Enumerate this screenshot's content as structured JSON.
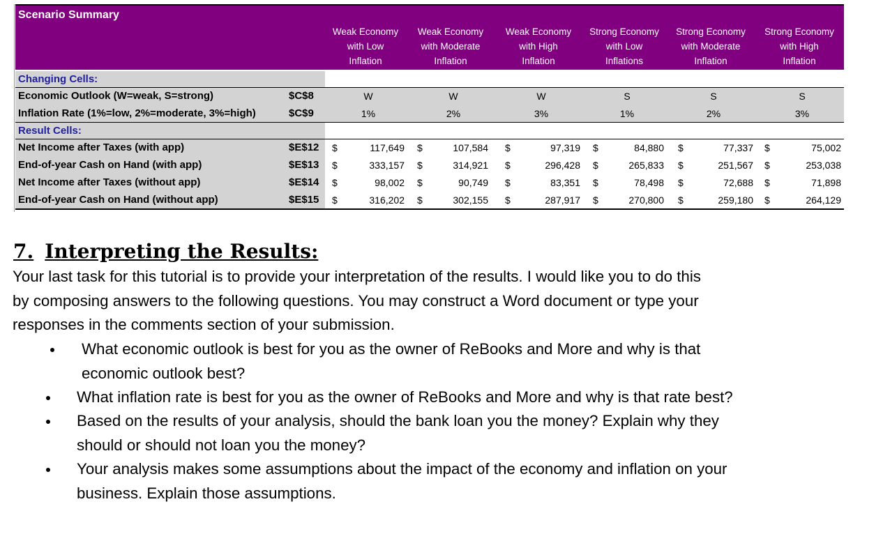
{
  "sheet": {
    "title": "Scenario Summary",
    "scenarios": [
      "Weak Economy with Low Inflation",
      "Weak Economy with Moderate Inflation",
      "Weak Economy with High Inflation",
      "Strong Economy with Low Inflations",
      "Strong Economy with Moderate Inflation",
      "Strong Economy with High Inflation"
    ],
    "scenario_lines": [
      [
        "Weak Economy",
        "with Low",
        "Inflation"
      ],
      [
        "Weak Economy",
        "with Moderate",
        "Inflation"
      ],
      [
        "Weak Economy",
        "with High",
        "Inflation"
      ],
      [
        "Strong Economy",
        "with Low",
        "Inflations"
      ],
      [
        "Strong Economy",
        "with Moderate",
        "Inflation"
      ],
      [
        "Strong Economy",
        "with High",
        "Inflation"
      ]
    ],
    "changing_label": "Changing Cells:",
    "changing_rows": [
      {
        "label": "Economic Outlook (W=weak, S=strong)",
        "ref": "$C$8",
        "values": [
          "W",
          "W",
          "W",
          "S",
          "S",
          "S"
        ]
      },
      {
        "label": "Inflation Rate (1%=low, 2%=moderate, 3%=high)",
        "ref": "$C$9",
        "values": [
          "1%",
          "2%",
          "3%",
          "1%",
          "2%",
          "3%"
        ]
      }
    ],
    "result_label": "Result Cells:",
    "currency_symbol": "$",
    "result_rows": [
      {
        "label": "Net Income after Taxes (with app)",
        "ref": "$E$12",
        "values": [
          "117,649",
          "107,584",
          "97,319",
          "84,880",
          "77,337",
          "75,002"
        ]
      },
      {
        "label": "End-of-year Cash on Hand (with app)",
        "ref": "$E$13",
        "values": [
          "333,157",
          "314,921",
          "296,428",
          "265,833",
          "251,567",
          "253,038"
        ]
      },
      {
        "label": "Net Income after Taxes (without  app)",
        "ref": "$E$14",
        "values": [
          "98,002",
          "90,749",
          "83,351",
          "78,498",
          "72,688",
          "71,898"
        ]
      },
      {
        "label": "End-of-year Cash on Hand (without  app)",
        "ref": "$E$15",
        "values": [
          "316,202",
          "302,155",
          "287,917",
          "270,800",
          "259,180",
          "264,129"
        ]
      }
    ],
    "header_color": "#800080",
    "label_fill_color": "#d3d3d3",
    "section_label_color": "#1f1f9f"
  },
  "section": {
    "number": "7.",
    "title": "Interpreting the Results:",
    "intro_lines": [
      "Your last task for this tutorial is to provide your interpretation of the results.  I would like you to do this",
      "by composing answers to the following questions. You may construct a Word document or type your",
      "responses in the comments section of your submission."
    ],
    "bullets": [
      [
        "What economic outlook is best for you as the owner of ReBooks and More and why is that",
        "economic outlook best?"
      ],
      [
        "What inflation rate is best for you as the owner of ReBooks and More and why is that rate best?"
      ],
      [
        "Based on the results of your analysis, should the bank loan you the money?  Explain why they",
        "should or should not loan you the money?"
      ],
      [
        "Your analysis makes some assumptions about the impact of the economy and inflation on your",
        "business.  Explain those assumptions."
      ]
    ]
  }
}
